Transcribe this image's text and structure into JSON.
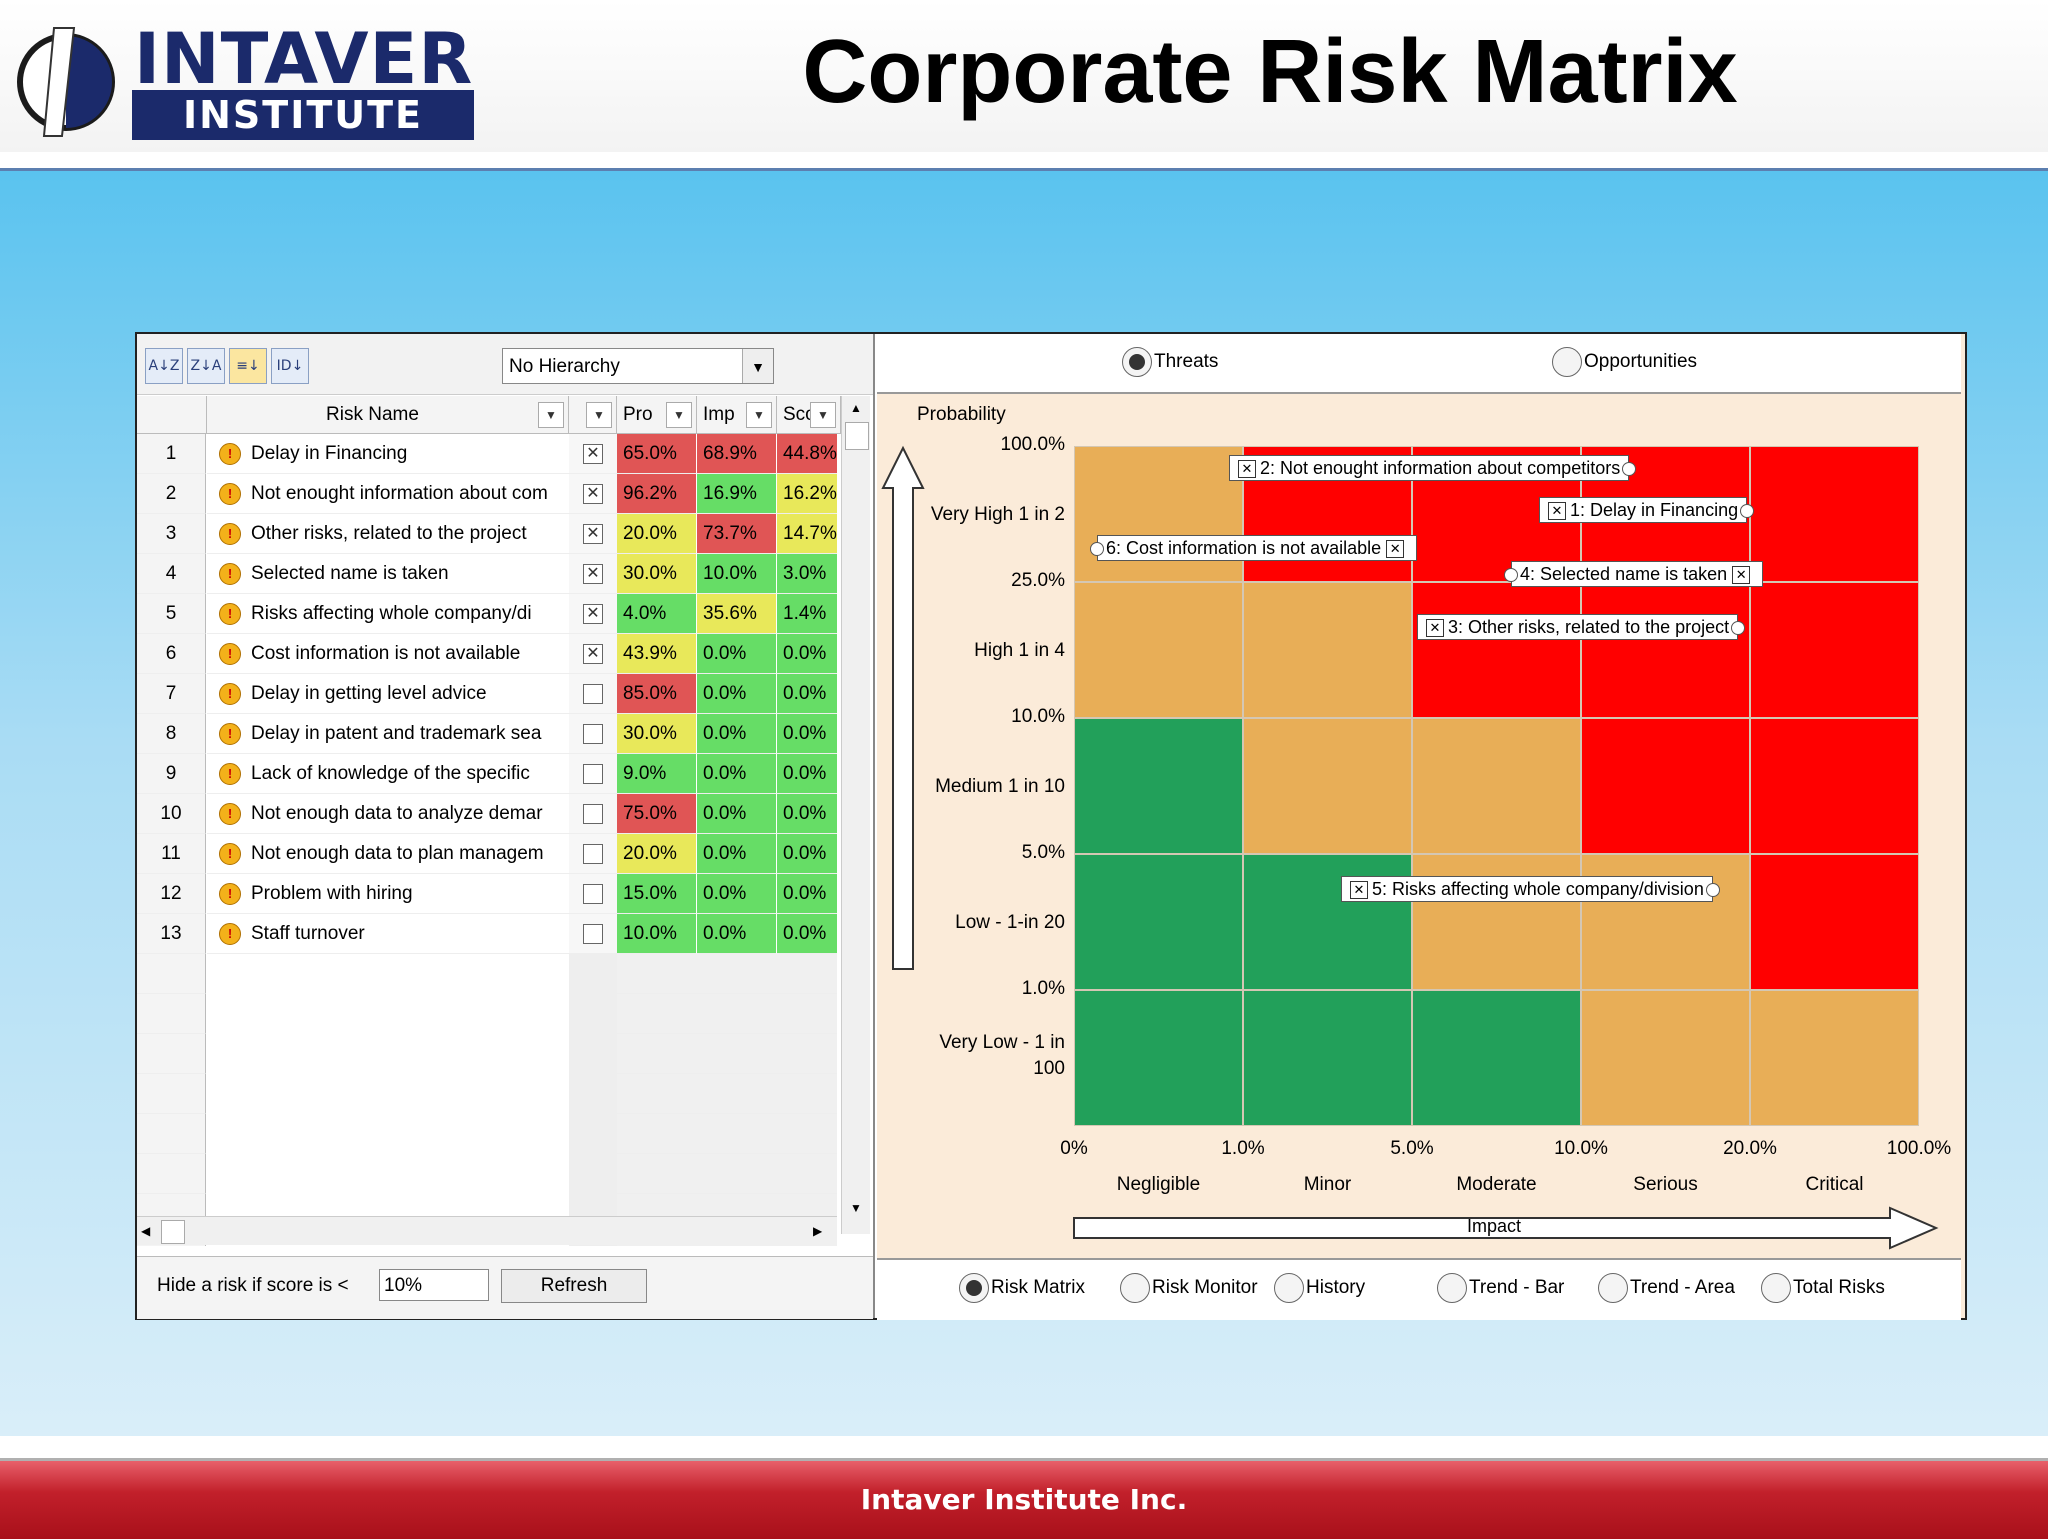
{
  "header": {
    "logo_line1": "INTAVER",
    "logo_line2": "INSTITUTE",
    "title": "Corporate Risk Matrix"
  },
  "footer": {
    "text": "Intaver Institute Inc."
  },
  "toolbar": {
    "sort_buttons": [
      "sort-az-icon",
      "sort-za-icon",
      "filter-icon",
      "id-sort-icon"
    ],
    "hierarchy_select": "No Hierarchy"
  },
  "grid": {
    "columns": [
      "Risk Name",
      "",
      "Pro",
      "Imp",
      "Sco"
    ],
    "rows": [
      {
        "n": "1",
        "name": "Delay in Financing",
        "checked": true,
        "p": "65.0%",
        "i": "68.9%",
        "s": "44.8%",
        "pc": "#e05555",
        "ic": "#e05555",
        "sc": "#e05555"
      },
      {
        "n": "2",
        "name": "Not enought information about com",
        "checked": true,
        "p": "96.2%",
        "i": "16.9%",
        "s": "16.2%",
        "pc": "#e05555",
        "ic": "#66dd66",
        "sc": "#e8e85a"
      },
      {
        "n": "3",
        "name": "Other risks, related to the project",
        "checked": true,
        "p": "20.0%",
        "i": "73.7%",
        "s": "14.7%",
        "pc": "#e8e85a",
        "ic": "#e05555",
        "sc": "#e8e85a"
      },
      {
        "n": "4",
        "name": "Selected name is taken",
        "checked": true,
        "p": "30.0%",
        "i": "10.0%",
        "s": "3.0%",
        "pc": "#e8e85a",
        "ic": "#66dd66",
        "sc": "#66dd66"
      },
      {
        "n": "5",
        "name": "Risks affecting whole company/di",
        "checked": true,
        "p": "4.0%",
        "i": "35.6%",
        "s": "1.4%",
        "pc": "#66dd66",
        "ic": "#e8e85a",
        "sc": "#66dd66"
      },
      {
        "n": "6",
        "name": "Cost information is not available",
        "checked": true,
        "p": "43.9%",
        "i": "0.0%",
        "s": "0.0%",
        "pc": "#e8e85a",
        "ic": "#66dd66",
        "sc": "#66dd66"
      },
      {
        "n": "7",
        "name": "Delay in getting level advice",
        "checked": false,
        "p": "85.0%",
        "i": "0.0%",
        "s": "0.0%",
        "pc": "#e05555",
        "ic": "#66dd66",
        "sc": "#66dd66"
      },
      {
        "n": "8",
        "name": "Delay in patent and trademark sea",
        "checked": false,
        "p": "30.0%",
        "i": "0.0%",
        "s": "0.0%",
        "pc": "#e8e85a",
        "ic": "#66dd66",
        "sc": "#66dd66"
      },
      {
        "n": "9",
        "name": "Lack of knowledge of the specific",
        "checked": false,
        "p": "9.0%",
        "i": "0.0%",
        "s": "0.0%",
        "pc": "#66dd66",
        "ic": "#66dd66",
        "sc": "#66dd66"
      },
      {
        "n": "10",
        "name": "Not enough data to analyze demar",
        "checked": false,
        "p": "75.0%",
        "i": "0.0%",
        "s": "0.0%",
        "pc": "#e05555",
        "ic": "#66dd66",
        "sc": "#66dd66"
      },
      {
        "n": "11",
        "name": "Not enough data to plan managem",
        "checked": false,
        "p": "20.0%",
        "i": "0.0%",
        "s": "0.0%",
        "pc": "#e8e85a",
        "ic": "#66dd66",
        "sc": "#66dd66"
      },
      {
        "n": "12",
        "name": "Problem with hiring",
        "checked": false,
        "p": "15.0%",
        "i": "0.0%",
        "s": "0.0%",
        "pc": "#66dd66",
        "ic": "#66dd66",
        "sc": "#66dd66"
      },
      {
        "n": "13",
        "name": "Staff turnover",
        "checked": false,
        "p": "10.0%",
        "i": "0.0%",
        "s": "0.0%",
        "pc": "#66dd66",
        "ic": "#66dd66",
        "sc": "#66dd66"
      }
    ]
  },
  "hide_filter": {
    "label": "Hide a risk if score is <",
    "value": "10%",
    "refresh_label": "Refresh"
  },
  "top_radios": [
    {
      "label": "Threats",
      "selected": true
    },
    {
      "label": "Opportunities",
      "selected": false
    }
  ],
  "bottom_radios": [
    {
      "label": "Risk Matrix",
      "selected": true
    },
    {
      "label": "Risk Monitor",
      "selected": false
    },
    {
      "label": "History",
      "selected": false
    },
    {
      "label": "Trend - Bar",
      "selected": false
    },
    {
      "label": "Trend - Area",
      "selected": false
    },
    {
      "label": "Total Risks",
      "selected": false
    }
  ],
  "matrix": {
    "y_title": "Probability",
    "y_ticks": [
      "100.0%",
      "25.0%",
      "10.0%",
      "5.0%",
      "1.0%"
    ],
    "y_bands": [
      "Very High 1 in 2",
      "High 1 in 4",
      "Medium 1 in 10",
      "Low - 1-in 20",
      "Very Low - 1 in 100"
    ],
    "x_ticks": [
      "0%",
      "1.0%",
      "5.0%",
      "10.0%",
      "20.0%",
      "100.0%"
    ],
    "x_bands": [
      "Negligible",
      "Minor",
      "Moderate",
      "Serious",
      "Critical"
    ],
    "x_title": "Impact",
    "colors": {
      "green": "#22a05a",
      "orange": "#e8ae57",
      "red": "#ff0000"
    },
    "cells": [
      [
        "orange",
        "red",
        "red",
        "red",
        "red"
      ],
      [
        "orange",
        "orange",
        "red",
        "red",
        "red"
      ],
      [
        "green",
        "orange",
        "orange",
        "red",
        "red"
      ],
      [
        "green",
        "green",
        "orange",
        "orange",
        "red"
      ],
      [
        "green",
        "green",
        "green",
        "orange",
        "orange"
      ]
    ],
    "tags": [
      {
        "text": "2: Not enought information about competitors",
        "side": "right"
      },
      {
        "text": "1: Delay in Financing",
        "side": "right"
      },
      {
        "text": "6: Cost information is not available",
        "side": "left"
      },
      {
        "text": "4: Selected name is taken",
        "side": "left"
      },
      {
        "text": "3: Other risks, related to the project",
        "side": "right"
      },
      {
        "text": "5: Risks affecting whole company/division",
        "side": "right"
      }
    ]
  }
}
